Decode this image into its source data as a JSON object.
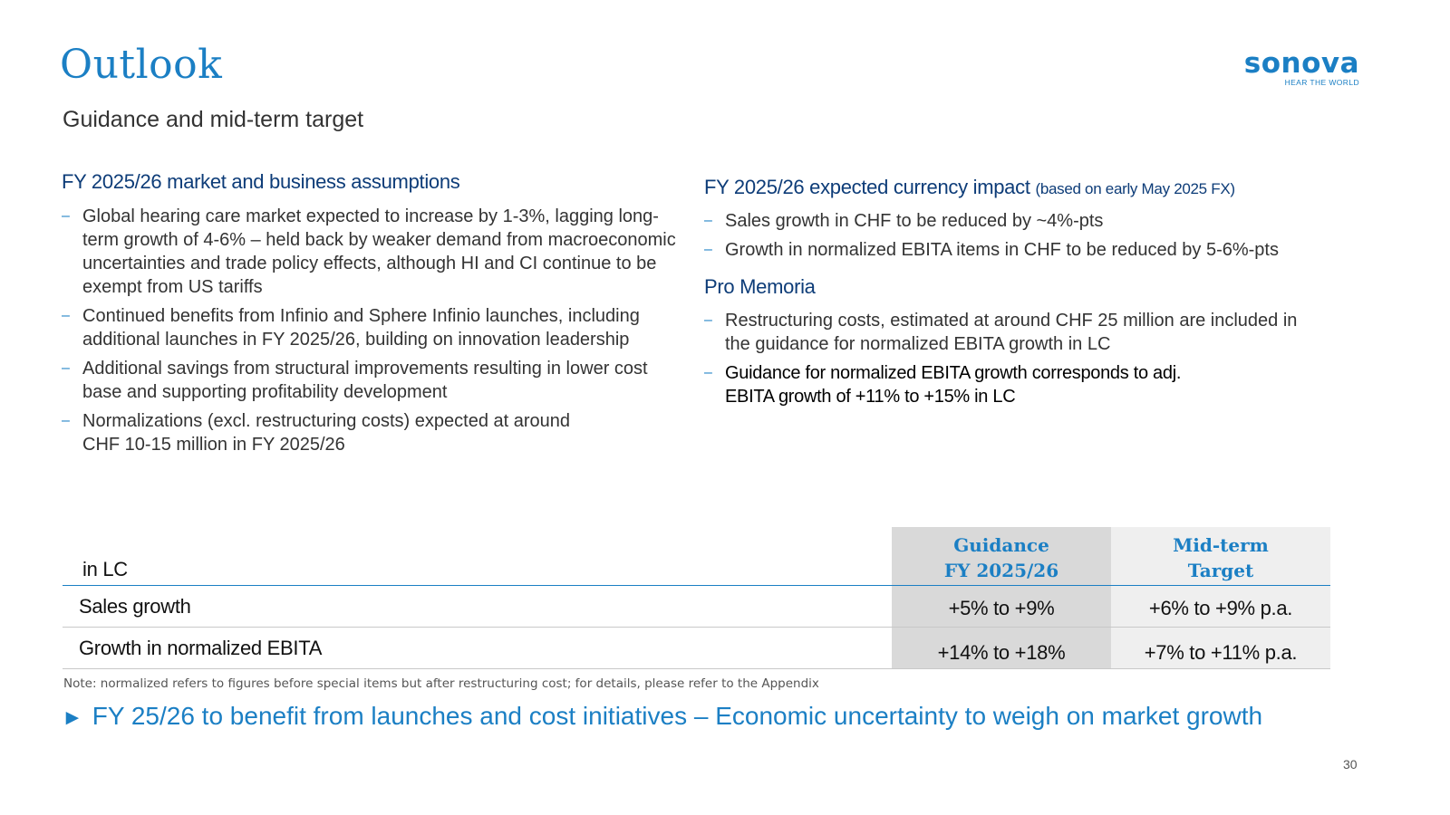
{
  "header": {
    "title": "Outlook",
    "subtitle": "Guidance and mid-term target",
    "logo_word": "sonova",
    "logo_tagline": "HEAR THE WORLD"
  },
  "left": {
    "heading": "FY 2025/26 market and business assumptions",
    "bullets": [
      "Global hearing care market expected to increase by 1-3%, lagging long-term growth of 4-6% – held back by weaker demand from macroeconomic uncertainties and trade policy effects, although HI and CI continue to be exempt from US tariffs",
      "Continued benefits from Infinio and Sphere Infinio launches, including additional launches in FY 2025/26, building on innovation leadership",
      "Additional savings from structural improvements resulting in lower cost base and supporting profitability development",
      "Normalizations (excl. restructuring costs) expected at around CHF 10-15 million in FY 2025/26"
    ]
  },
  "right": {
    "currency_heading": "FY 2025/26 expected currency impact",
    "currency_heading_note": "(based on early May 2025 FX)",
    "currency_bullets": [
      "Sales growth in CHF to be reduced by ~4%-pts",
      "Growth in normalized EBITA items in CHF to be reduced by 5-6%-pts"
    ],
    "memoria_heading": "Pro Memoria",
    "memoria_bullets": [
      "Restructuring costs, estimated at around CHF 25 million are included in the guidance for normalized EBITA growth in LC",
      "Guidance for normalized EBITA growth corresponds to adj. EBITA growth of +11% to +15% in LC"
    ]
  },
  "table": {
    "unit_label": "in LC",
    "col_guidance_line1": "Guidance",
    "col_guidance_line2": "FY 2025/26",
    "col_midterm_line1": "Mid-term",
    "col_midterm_line2": "Target",
    "rows": [
      {
        "label": "Sales growth",
        "guidance": "+5% to +9%",
        "midterm": "+6% to +9% p.a."
      },
      {
        "label": "Growth in normalized EBITA",
        "guidance": "+14% to +18%",
        "midterm": "+7% to +11% p.a."
      }
    ]
  },
  "footnote": "Note: normalized refers to figures before special items but after restructuring cost; for details, please refer to the Appendix",
  "conclusion": {
    "arrow": "►",
    "text": "FY 25/26 to benefit from launches and cost initiatives – Economic uncertainty to weigh on market growth"
  },
  "page_number": "30",
  "colors": {
    "accent": "#1b7fc4",
    "heading": "#0d3c78",
    "guidance_bg": "#d9d9d9",
    "midterm_bg": "#efefef"
  }
}
